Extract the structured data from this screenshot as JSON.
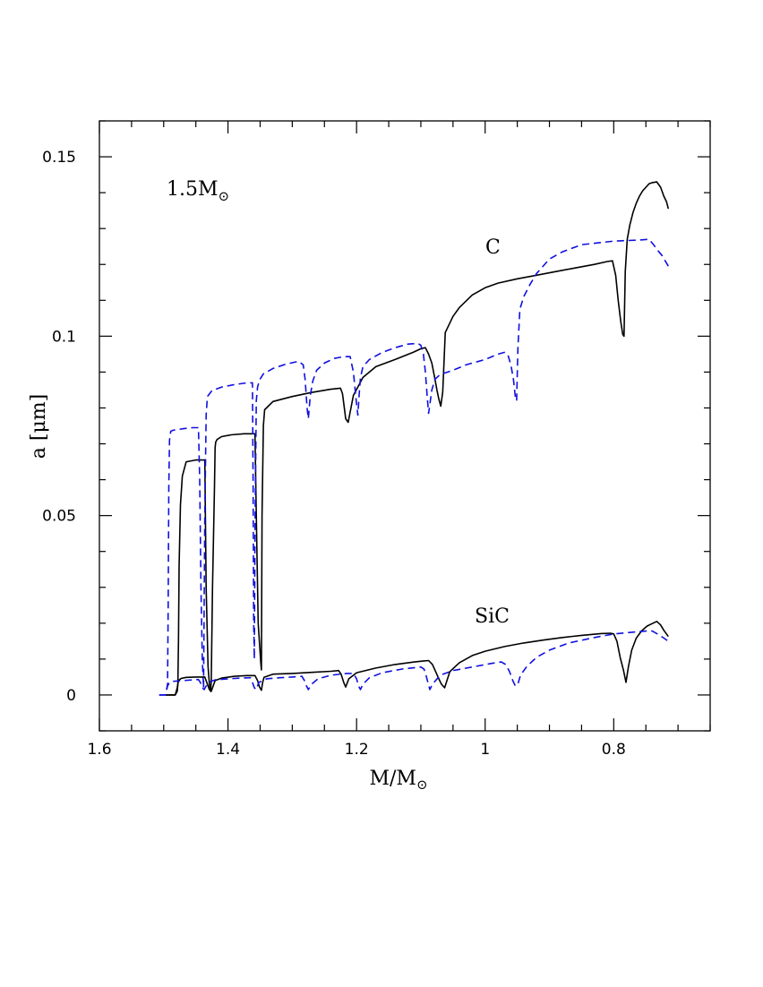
{
  "chart_data": {
    "type": "line",
    "title": "",
    "xlabel": "M/M",
    "xlabel_subscript": "⊙",
    "ylabel": "a  [μm]",
    "xlim": [
      1.6,
      0.65
    ],
    "ylim": [
      -0.01,
      0.16
    ],
    "x_ticks": [
      1.6,
      1.4,
      1.2,
      1,
      0.8
    ],
    "x_tick_labels": [
      "1.6",
      "1.4",
      "1.2",
      "1",
      "0.8"
    ],
    "x_minor_step": 0.05,
    "y_ticks": [
      0,
      0.05,
      0.1,
      0.15
    ],
    "y_tick_labels": [
      "0",
      "0.05",
      "0.1",
      "0.15"
    ],
    "y_minor_step": 0.01,
    "grid": false,
    "annotations": [
      {
        "name": "mass-label",
        "text": "1.5M",
        "subscript": "⊙",
        "x": 1.53,
        "y": 0.141
      },
      {
        "name": "carbon-label",
        "text": "C",
        "x": 0.985,
        "y": 0.124
      },
      {
        "name": "sic-label",
        "text": "SiC",
        "x": 0.975,
        "y": 0.021
      }
    ],
    "colors": {
      "solid": "#000000",
      "dashed": "#1010e0",
      "frame": "#000000"
    },
    "series": [
      {
        "name": "C solid",
        "style": "solid",
        "x": [
          1.497,
          1.482,
          1.479,
          1.478,
          1.477,
          1.476,
          1.474,
          1.471,
          1.465,
          1.45,
          1.436,
          1.434,
          1.431,
          1.429,
          1.427,
          1.426,
          1.424,
          1.421,
          1.42,
          1.419,
          1.417,
          1.41,
          1.395,
          1.375,
          1.358,
          1.356,
          1.353,
          1.349,
          1.348,
          1.347,
          1.345,
          1.343,
          1.33,
          1.3,
          1.27,
          1.24,
          1.225,
          1.222,
          1.219,
          1.217,
          1.213,
          1.205,
          1.19,
          1.17,
          1.14,
          1.112,
          1.1,
          1.093,
          1.088,
          1.083,
          1.078,
          1.075,
          1.072,
          1.069,
          1.066,
          1.062,
          1.05,
          1.04,
          1.02,
          1.0,
          0.98,
          0.95,
          0.92,
          0.89,
          0.86,
          0.83,
          0.81,
          0.802,
          0.797,
          0.793,
          0.789,
          0.786,
          0.784,
          0.782,
          0.779,
          0.775,
          0.77,
          0.765,
          0.76,
          0.755,
          0.75,
          0.745,
          0.74,
          0.733,
          0.727,
          0.722,
          0.718,
          0.715
        ],
        "y": [
          0.0,
          0.0,
          0.001,
          0.003,
          0.015,
          0.036,
          0.053,
          0.061,
          0.065,
          0.0655,
          0.0655,
          0.03,
          0.008,
          0.003,
          0.001,
          0.004,
          0.03,
          0.058,
          0.069,
          0.0705,
          0.0712,
          0.072,
          0.0725,
          0.0728,
          0.0728,
          0.05,
          0.02,
          0.009,
          0.007,
          0.05,
          0.075,
          0.0795,
          0.0818,
          0.0832,
          0.0843,
          0.0852,
          0.0855,
          0.084,
          0.08,
          0.077,
          0.076,
          0.0835,
          0.0885,
          0.0915,
          0.0935,
          0.0955,
          0.0965,
          0.0968,
          0.095,
          0.0925,
          0.088,
          0.085,
          0.0825,
          0.0805,
          0.0845,
          0.101,
          0.1055,
          0.108,
          0.1115,
          0.1135,
          0.1148,
          0.116,
          0.117,
          0.118,
          0.119,
          0.12,
          0.1208,
          0.121,
          0.117,
          0.11,
          0.104,
          0.1005,
          0.1,
          0.118,
          0.127,
          0.131,
          0.1345,
          0.137,
          0.139,
          0.1405,
          0.1415,
          0.1425,
          0.1428,
          0.143,
          0.1415,
          0.139,
          0.1375,
          0.1355
        ]
      },
      {
        "name": "C dashed",
        "style": "dashed",
        "x": [
          1.507,
          1.497,
          1.494,
          1.493,
          1.492,
          1.491,
          1.489,
          1.485,
          1.47,
          1.455,
          1.446,
          1.444,
          1.442,
          1.44,
          1.438,
          1.436,
          1.434,
          1.432,
          1.425,
          1.41,
          1.39,
          1.37,
          1.362,
          1.361,
          1.36,
          1.359,
          1.358,
          1.356,
          1.354,
          1.351,
          1.345,
          1.33,
          1.31,
          1.29,
          1.283,
          1.28,
          1.277,
          1.275,
          1.272,
          1.268,
          1.262,
          1.25,
          1.235,
          1.22,
          1.21,
          1.205,
          1.2,
          1.198,
          1.196,
          1.194,
          1.19,
          1.18,
          1.16,
          1.14,
          1.12,
          1.105,
          1.1,
          1.096,
          1.093,
          1.09,
          1.088,
          1.086,
          1.083,
          1.078,
          1.07,
          1.05,
          1.03,
          1.0,
          0.98,
          0.97,
          0.965,
          0.96,
          0.956,
          0.953,
          0.951,
          0.949,
          0.946,
          0.94,
          0.93,
          0.92,
          0.9,
          0.88,
          0.85,
          0.8,
          0.76,
          0.745,
          0.738,
          0.732,
          0.725,
          0.715
        ],
        "y": [
          0.0,
          0.0,
          0.003,
          0.025,
          0.058,
          0.071,
          0.0735,
          0.0738,
          0.0742,
          0.0745,
          0.0745,
          0.06,
          0.03,
          0.01,
          0.002,
          0.05,
          0.078,
          0.0832,
          0.0848,
          0.0858,
          0.0865,
          0.087,
          0.087,
          0.06,
          0.02,
          0.01,
          0.045,
          0.082,
          0.0858,
          0.0878,
          0.0895,
          0.091,
          0.0922,
          0.093,
          0.092,
          0.088,
          0.08,
          0.077,
          0.0835,
          0.0875,
          0.0905,
          0.0925,
          0.0938,
          0.0943,
          0.0943,
          0.09,
          0.081,
          0.078,
          0.0835,
          0.0885,
          0.0915,
          0.0935,
          0.0955,
          0.0968,
          0.0978,
          0.098,
          0.0975,
          0.095,
          0.09,
          0.083,
          0.0785,
          0.081,
          0.085,
          0.088,
          0.0893,
          0.0905,
          0.092,
          0.0935,
          0.095,
          0.0955,
          0.095,
          0.092,
          0.088,
          0.083,
          0.082,
          0.0965,
          0.1075,
          0.111,
          0.1145,
          0.1175,
          0.1215,
          0.1235,
          0.1255,
          0.1265,
          0.1268,
          0.127,
          0.1255,
          0.124,
          0.1225,
          0.1195
        ]
      },
      {
        "name": "SiC solid",
        "style": "solid",
        "x": [
          1.497,
          1.482,
          1.479,
          1.477,
          1.473,
          1.465,
          1.45,
          1.436,
          1.432,
          1.429,
          1.426,
          1.42,
          1.41,
          1.39,
          1.37,
          1.358,
          1.354,
          1.351,
          1.348,
          1.346,
          1.344,
          1.33,
          1.3,
          1.27,
          1.24,
          1.228,
          1.224,
          1.22,
          1.217,
          1.212,
          1.2,
          1.17,
          1.14,
          1.11,
          1.095,
          1.088,
          1.082,
          1.077,
          1.072,
          1.068,
          1.063,
          1.055,
          1.04,
          1.02,
          1.0,
          0.97,
          0.94,
          0.91,
          0.88,
          0.85,
          0.82,
          0.805,
          0.8,
          0.795,
          0.79,
          0.785,
          0.781,
          0.777,
          0.772,
          0.765,
          0.757,
          0.748,
          0.74,
          0.733,
          0.727,
          0.722,
          0.718,
          0.715
        ],
        "y": [
          0.0,
          0.0,
          0.002,
          0.004,
          0.0046,
          0.0049,
          0.005,
          0.005,
          0.003,
          0.0015,
          0.001,
          0.004,
          0.0047,
          0.0052,
          0.0054,
          0.0054,
          0.004,
          0.0022,
          0.0013,
          0.0035,
          0.0049,
          0.0058,
          0.006,
          0.0063,
          0.0066,
          0.0068,
          0.0058,
          0.0035,
          0.0022,
          0.0045,
          0.0062,
          0.0075,
          0.0085,
          0.0092,
          0.0095,
          0.0096,
          0.0085,
          0.0065,
          0.0045,
          0.003,
          0.002,
          0.0065,
          0.009,
          0.011,
          0.0122,
          0.0135,
          0.0145,
          0.0153,
          0.016,
          0.0166,
          0.0171,
          0.0172,
          0.017,
          0.015,
          0.0105,
          0.007,
          0.0035,
          0.008,
          0.0125,
          0.0158,
          0.0178,
          0.0192,
          0.0199,
          0.0205,
          0.0195,
          0.018,
          0.017,
          0.0163
        ]
      },
      {
        "name": "SiC dashed",
        "style": "dashed",
        "x": [
          1.507,
          1.497,
          1.494,
          1.491,
          1.485,
          1.47,
          1.455,
          1.446,
          1.443,
          1.44,
          1.437,
          1.434,
          1.43,
          1.42,
          1.4,
          1.38,
          1.365,
          1.362,
          1.359,
          1.356,
          1.352,
          1.34,
          1.32,
          1.3,
          1.285,
          1.281,
          1.278,
          1.275,
          1.27,
          1.26,
          1.24,
          1.215,
          1.205,
          1.2,
          1.197,
          1.194,
          1.19,
          1.18,
          1.16,
          1.13,
          1.1,
          1.095,
          1.092,
          1.089,
          1.086,
          1.082,
          1.07,
          1.05,
          1.02,
          0.99,
          0.975,
          0.968,
          0.962,
          0.957,
          0.953,
          0.949,
          0.945,
          0.935,
          0.92,
          0.9,
          0.87,
          0.83,
          0.8,
          0.77,
          0.75,
          0.74,
          0.732,
          0.725,
          0.715
        ],
        "y": [
          0.0,
          0.0,
          0.0025,
          0.0035,
          0.0038,
          0.004,
          0.0042,
          0.0043,
          0.0035,
          0.002,
          0.0015,
          0.0025,
          0.0035,
          0.0042,
          0.0045,
          0.0047,
          0.0048,
          0.0035,
          0.002,
          0.0015,
          0.0035,
          0.0045,
          0.0048,
          0.005,
          0.0052,
          0.004,
          0.0025,
          0.0015,
          0.003,
          0.0045,
          0.0055,
          0.006,
          0.006,
          0.0045,
          0.0025,
          0.0015,
          0.003,
          0.0048,
          0.0062,
          0.0072,
          0.0078,
          0.0072,
          0.0055,
          0.0035,
          0.0015,
          0.003,
          0.0055,
          0.0068,
          0.0078,
          0.0088,
          0.0092,
          0.0085,
          0.0065,
          0.004,
          0.0025,
          0.003,
          0.0055,
          0.008,
          0.0105,
          0.0125,
          0.0145,
          0.016,
          0.017,
          0.0175,
          0.0178,
          0.0178,
          0.017,
          0.0162,
          0.015
        ]
      }
    ]
  }
}
